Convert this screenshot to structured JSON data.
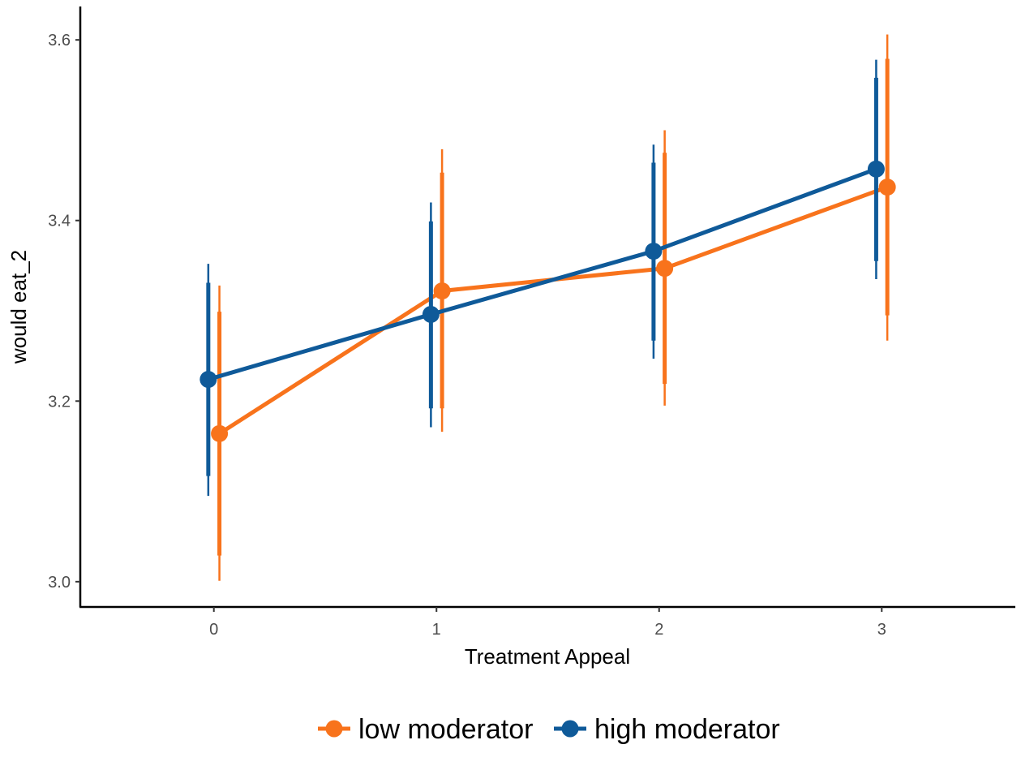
{
  "chart_data": {
    "type": "line",
    "xlabel": "Treatment Appeal",
    "ylabel": "would eat_2",
    "x": [
      0,
      1,
      2,
      3
    ],
    "x_tick_labels": [
      "0",
      "1",
      "2",
      "3"
    ],
    "y_tick_labels": [
      "3.0",
      "3.2",
      "3.4",
      "3.6"
    ],
    "y_ticks": [
      3.0,
      3.2,
      3.4,
      3.6
    ],
    "xlim": [
      -0.6,
      3.6
    ],
    "ylim": [
      2.972,
      3.637
    ],
    "grid": false,
    "legend_position": "bottom",
    "series": [
      {
        "name": "low moderator",
        "color": "#f8731c",
        "dodge": 0.025,
        "values": [
          3.164,
          3.322,
          3.347,
          3.437
        ],
        "inner_ci": [
          [
            3.029,
            3.299
          ],
          [
            3.192,
            3.453
          ],
          [
            3.219,
            3.475
          ],
          [
            3.295,
            3.579
          ]
        ],
        "outer_ci": [
          [
            3.001,
            3.328
          ],
          [
            3.166,
            3.479
          ],
          [
            3.195,
            3.5
          ],
          [
            3.267,
            3.606
          ]
        ]
      },
      {
        "name": "high moderator",
        "color": "#0f5a99",
        "dodge": -0.025,
        "values": [
          3.224,
          3.296,
          3.366,
          3.457
        ],
        "inner_ci": [
          [
            3.117,
            3.331
          ],
          [
            3.192,
            3.399
          ],
          [
            3.267,
            3.464
          ],
          [
            3.355,
            3.558
          ]
        ],
        "outer_ci": [
          [
            3.095,
            3.352
          ],
          [
            3.171,
            3.42
          ],
          [
            3.247,
            3.484
          ],
          [
            3.335,
            3.578
          ]
        ]
      }
    ]
  }
}
